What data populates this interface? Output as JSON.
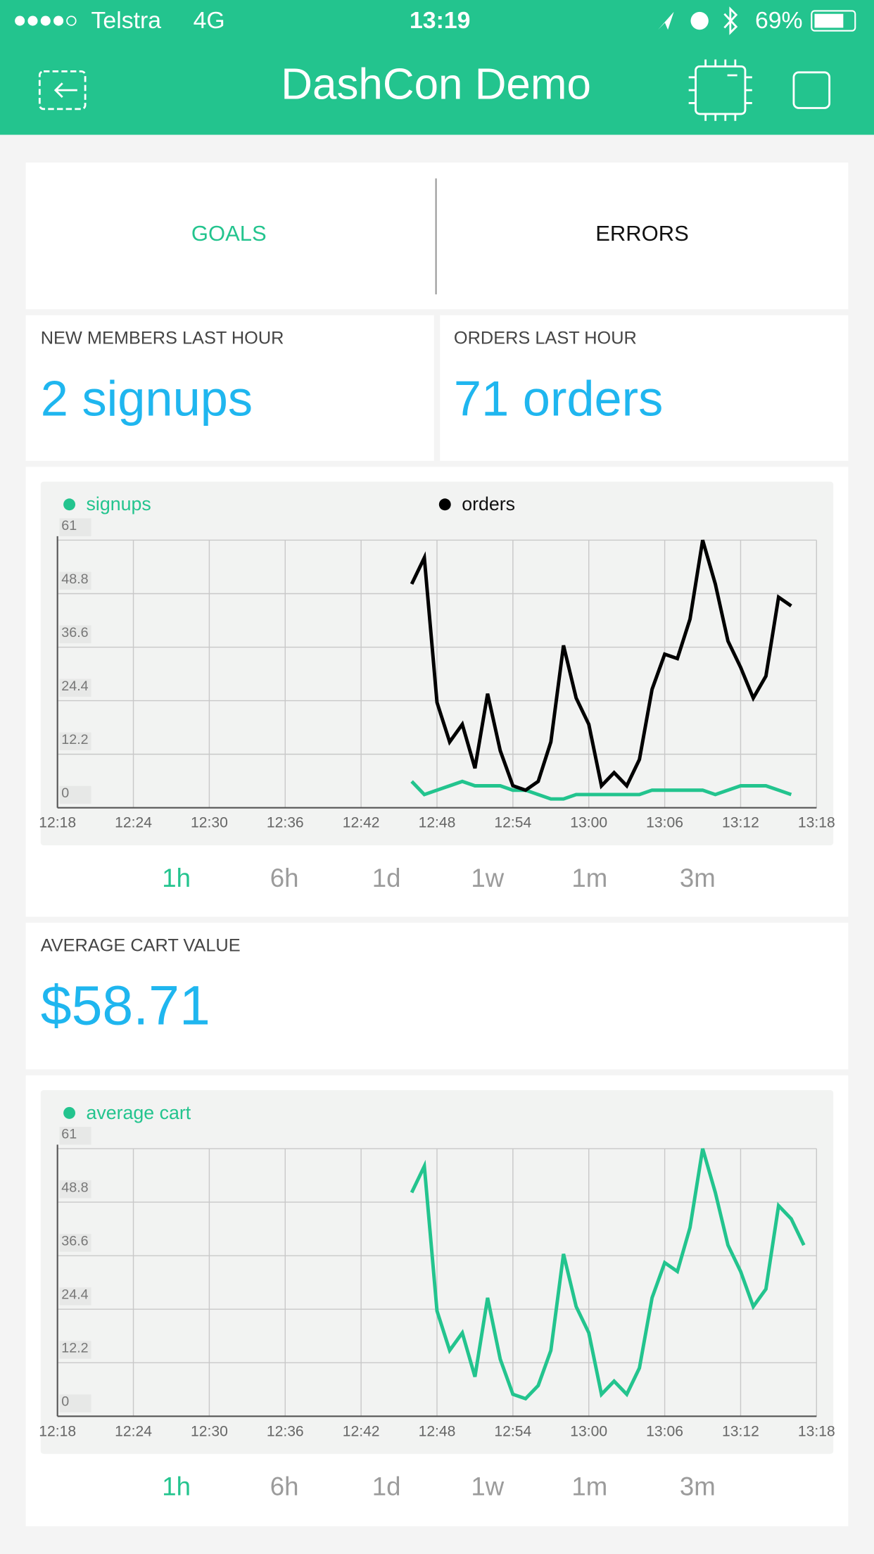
{
  "status_bar": {
    "carrier": "Telstra",
    "network": "4G",
    "time": "13:19",
    "battery": "69%"
  },
  "header": {
    "title": "DashCon Demo"
  },
  "tabs": [
    {
      "label": "GOALS",
      "active": true
    },
    {
      "label": "ERRORS",
      "active": false
    }
  ],
  "metrics": [
    {
      "label": "NEW MEMBERS LAST HOUR",
      "value": "2 signups"
    },
    {
      "label": "ORDERS LAST HOUR",
      "value": "71 orders"
    },
    {
      "label": "AVERAGE CART VALUE",
      "value": "$58.71"
    }
  ],
  "chart_data": [
    {
      "type": "line",
      "x": [
        "12:46",
        "12:47",
        "12:48",
        "12:49",
        "12:50",
        "12:51",
        "12:52",
        "12:53",
        "12:54",
        "12:55",
        "12:56",
        "12:57",
        "12:58",
        "12:59",
        "13:00",
        "13:01",
        "13:02",
        "13:03",
        "13:04",
        "13:05",
        "13:06",
        "13:07",
        "13:08",
        "13:09",
        "13:10",
        "13:11",
        "13:12",
        "13:13",
        "13:14",
        "13:15",
        "13:16"
      ],
      "series": [
        {
          "name": "signups",
          "color": "#23c48e",
          "values": [
            6,
            3,
            4,
            5,
            6,
            5,
            5,
            5,
            4,
            4,
            3,
            2,
            2,
            3,
            3,
            3,
            3,
            3,
            3,
            4,
            4,
            4,
            4,
            4,
            3,
            4,
            5,
            5,
            5,
            4,
            3
          ]
        },
        {
          "name": "orders",
          "color": "#000000",
          "values": [
            51,
            57,
            24,
            15,
            19,
            9,
            26,
            13,
            5,
            4,
            6,
            15,
            37,
            25,
            19,
            5,
            8,
            5,
            11,
            27,
            35,
            34,
            43,
            61,
            51,
            38,
            32,
            25,
            30,
            48,
            46
          ]
        }
      ],
      "xlim": [
        "12:18",
        "13:18"
      ],
      "xticks": [
        "12:18",
        "12:24",
        "12:30",
        "12:36",
        "12:42",
        "12:48",
        "12:54",
        "13:00",
        "13:06",
        "13:12",
        "13:18"
      ],
      "ylim": [
        0,
        61
      ],
      "yticks": [
        0,
        12.2,
        24.4,
        36.6,
        48.8,
        61
      ],
      "grid": true
    },
    {
      "type": "line",
      "x": [
        "12:46",
        "12:47",
        "12:48",
        "12:49",
        "12:50",
        "12:51",
        "12:52",
        "12:53",
        "12:54",
        "12:55",
        "12:56",
        "12:57",
        "12:58",
        "12:59",
        "13:00",
        "13:01",
        "13:02",
        "13:03",
        "13:04",
        "13:05",
        "13:06",
        "13:07",
        "13:08",
        "13:09",
        "13:10",
        "13:11",
        "13:12",
        "13:13",
        "13:14",
        "13:15",
        "13:16",
        "13:17"
      ],
      "series": [
        {
          "name": "average cart",
          "color": "#23c48e",
          "values": [
            51,
            57,
            24,
            15,
            19,
            9,
            27,
            13,
            5,
            4,
            7,
            15,
            37,
            25,
            19,
            5,
            8,
            5,
            11,
            27,
            35,
            33,
            43,
            61,
            51,
            39,
            33,
            25,
            29,
            48,
            45,
            39
          ]
        }
      ],
      "xlim": [
        "12:18",
        "13:18"
      ],
      "xticks": [
        "12:18",
        "12:24",
        "12:30",
        "12:36",
        "12:42",
        "12:48",
        "12:54",
        "13:00",
        "13:06",
        "13:12",
        "13:18"
      ],
      "ylim": [
        0,
        61
      ],
      "yticks": [
        0,
        12.2,
        24.4,
        36.6,
        48.8,
        61
      ],
      "grid": true
    }
  ],
  "range_buttons": [
    [
      {
        "label": "1h",
        "active": true
      },
      {
        "label": "6h",
        "active": false
      },
      {
        "label": "1d",
        "active": false
      },
      {
        "label": "1w",
        "active": false
      },
      {
        "label": "1m",
        "active": false
      },
      {
        "label": "3m",
        "active": false
      }
    ],
    [
      {
        "label": "1h",
        "active": true
      },
      {
        "label": "6h",
        "active": false
      },
      {
        "label": "1d",
        "active": false
      },
      {
        "label": "1w",
        "active": false
      },
      {
        "label": "1m",
        "active": false
      },
      {
        "label": "3m",
        "active": false
      }
    ]
  ]
}
